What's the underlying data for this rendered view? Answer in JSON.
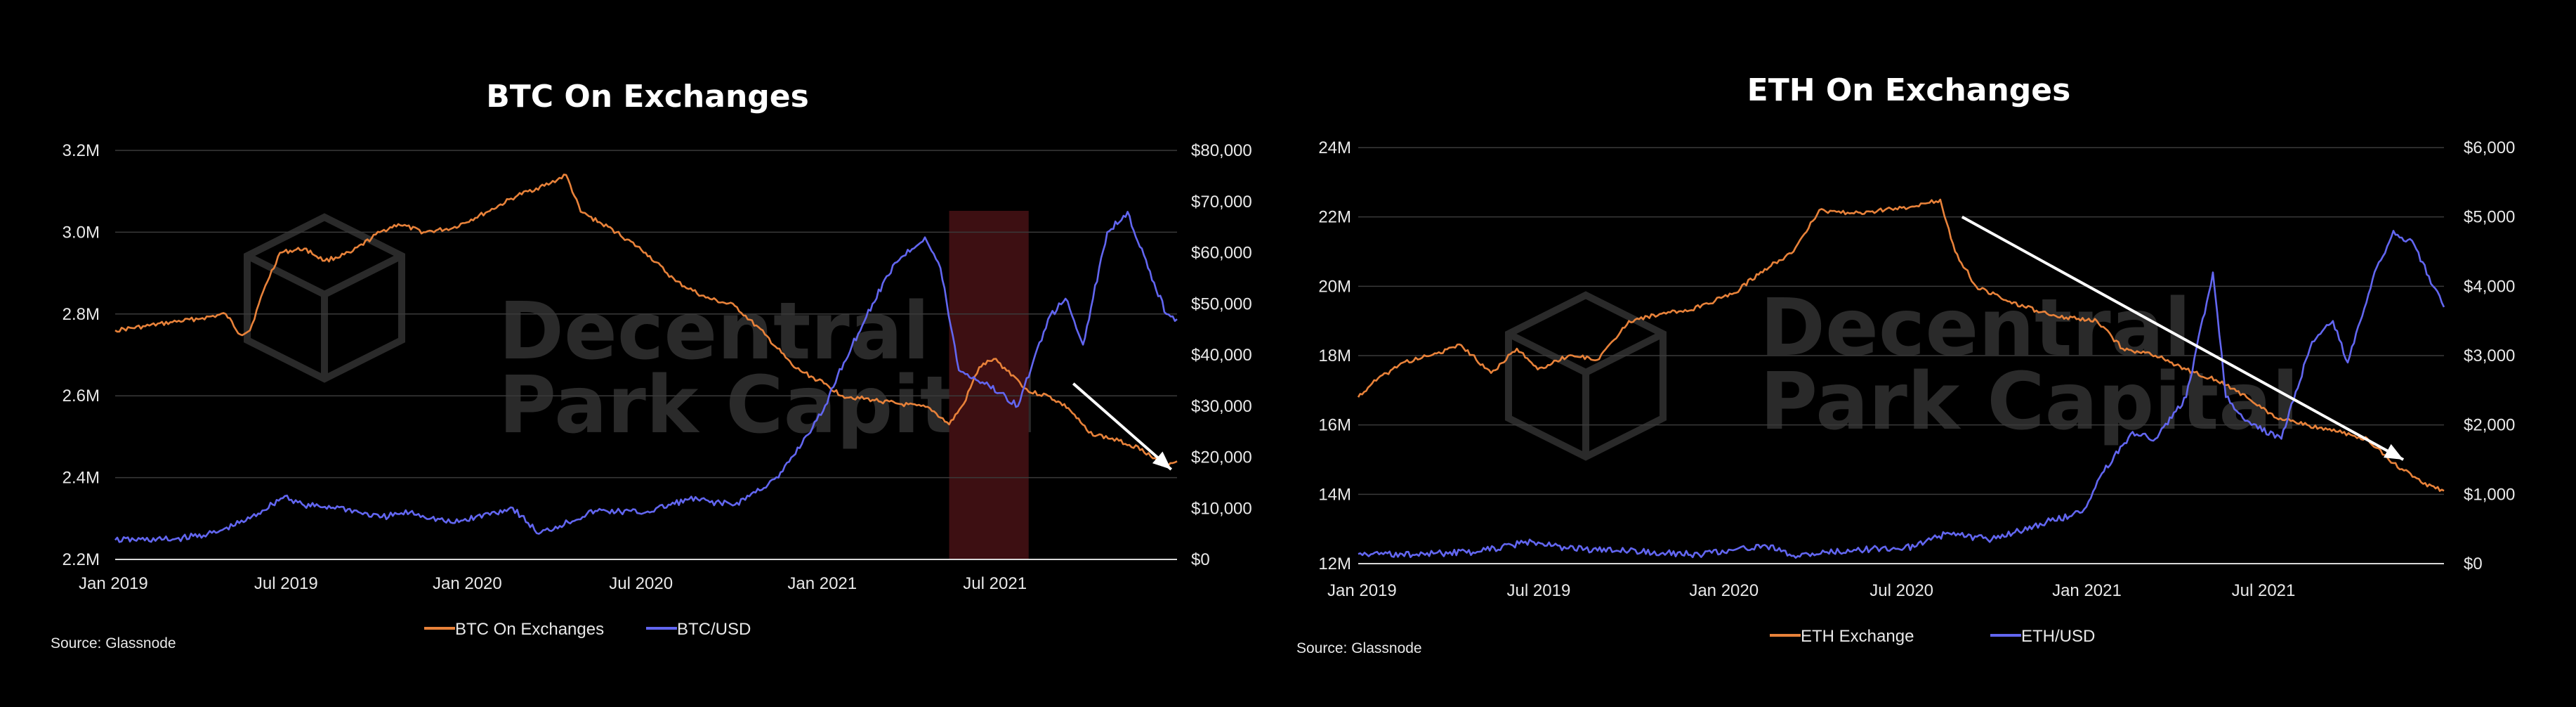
{
  "colors": {
    "orange": "#E8823A",
    "blue": "#6266F0",
    "grid": "#3a3a3a",
    "highlight": "#3d0f12",
    "background": "#000000",
    "arrow": "#ffffff"
  },
  "watermark": {
    "line1": "Decentral",
    "line2": "Park Capital"
  },
  "chart_data": [
    {
      "type": "line",
      "title": "BTC On Exchanges",
      "source": "Source: Glassnode",
      "x_ticks": [
        "Jan 2019",
        "Jul 2019",
        "Jan 2020",
        "Jul 2020",
        "Jan 2021",
        "Jul 2021"
      ],
      "x_range": [
        "2019-01-01",
        "2021-12-31"
      ],
      "y_left": {
        "ticks": [
          "2.2M",
          "2.4M",
          "2.6M",
          "2.8M",
          "3.0M",
          "3.2M"
        ],
        "range": [
          2.2,
          3.2
        ],
        "unit": "M BTC"
      },
      "y_right": {
        "ticks": [
          "$0",
          "$10,000",
          "$20,000",
          "$30,000",
          "$40,000",
          "$50,000",
          "$60,000",
          "$70,000",
          "$80,000"
        ],
        "range": [
          0,
          80000
        ]
      },
      "highlight_region": [
        "2021-05-10",
        "2021-07-31"
      ],
      "arrow": {
        "from": [
          "2021-09-15",
          2.63
        ],
        "to": [
          "2021-12-25",
          2.42
        ],
        "axis": "left"
      },
      "legend": [
        "BTC On Exchanges",
        "BTC/USD"
      ],
      "series": [
        {
          "name": "BTC On Exchanges",
          "axis": "left",
          "color": "orange",
          "points": [
            [
              "2019-01-01",
              2.76
            ],
            [
              "2019-02-01",
              2.77
            ],
            [
              "2019-03-01",
              2.78
            ],
            [
              "2019-04-01",
              2.79
            ],
            [
              "2019-04-25",
              2.8
            ],
            [
              "2019-05-10",
              2.75
            ],
            [
              "2019-05-20",
              2.76
            ],
            [
              "2019-06-05",
              2.87
            ],
            [
              "2019-06-20",
              2.95
            ],
            [
              "2019-07-15",
              2.96
            ],
            [
              "2019-08-05",
              2.93
            ],
            [
              "2019-09-01",
              2.95
            ],
            [
              "2019-10-01",
              3.0
            ],
            [
              "2019-10-20",
              3.02
            ],
            [
              "2019-11-15",
              3.0
            ],
            [
              "2019-12-15",
              3.01
            ],
            [
              "2020-01-20",
              3.05
            ],
            [
              "2020-02-20",
              3.09
            ],
            [
              "2020-03-25",
              3.12
            ],
            [
              "2020-04-10",
              3.14
            ],
            [
              "2020-04-25",
              3.05
            ],
            [
              "2020-06-01",
              3.0
            ],
            [
              "2020-07-01",
              2.95
            ],
            [
              "2020-08-01",
              2.88
            ],
            [
              "2020-09-01",
              2.84
            ],
            [
              "2020-10-01",
              2.82
            ],
            [
              "2020-11-01",
              2.75
            ],
            [
              "2020-12-01",
              2.67
            ],
            [
              "2021-01-01",
              2.63
            ],
            [
              "2021-01-20",
              2.6
            ],
            [
              "2021-02-20",
              2.59
            ],
            [
              "2021-03-20",
              2.58
            ],
            [
              "2021-04-20",
              2.57
            ],
            [
              "2021-05-10",
              2.53
            ],
            [
              "2021-05-25",
              2.58
            ],
            [
              "2021-06-10",
              2.67
            ],
            [
              "2021-06-25",
              2.69
            ],
            [
              "2021-07-15",
              2.65
            ],
            [
              "2021-07-31",
              2.61
            ],
            [
              "2021-08-20",
              2.6
            ],
            [
              "2021-09-10",
              2.57
            ],
            [
              "2021-10-01",
              2.51
            ],
            [
              "2021-11-01",
              2.49
            ],
            [
              "2021-11-25",
              2.47
            ],
            [
              "2021-12-15",
              2.43
            ],
            [
              "2021-12-31",
              2.44
            ]
          ]
        },
        {
          "name": "BTC/USD",
          "axis": "right",
          "color": "blue",
          "points": [
            [
              "2019-01-01",
              3800
            ],
            [
              "2019-03-01",
              3900
            ],
            [
              "2019-04-15",
              5200
            ],
            [
              "2019-05-20",
              8000
            ],
            [
              "2019-06-25",
              12400
            ],
            [
              "2019-07-15",
              10500
            ],
            [
              "2019-08-20",
              10200
            ],
            [
              "2019-10-01",
              8200
            ],
            [
              "2019-11-01",
              9200
            ],
            [
              "2019-12-15",
              7100
            ],
            [
              "2020-02-15",
              10100
            ],
            [
              "2020-03-13",
              5000
            ],
            [
              "2020-05-10",
              9500
            ],
            [
              "2020-07-01",
              9200
            ],
            [
              "2020-08-15",
              11800
            ],
            [
              "2020-10-01",
              10700
            ],
            [
              "2020-11-15",
              16000
            ],
            [
              "2020-12-31",
              29000
            ],
            [
              "2021-01-15",
              36000
            ],
            [
              "2021-02-20",
              50000
            ],
            [
              "2021-03-15",
              58000
            ],
            [
              "2021-04-15",
              63000
            ],
            [
              "2021-05-01",
              57000
            ],
            [
              "2021-05-20",
              37000
            ],
            [
              "2021-06-20",
              34000
            ],
            [
              "2021-07-20",
              30000
            ],
            [
              "2021-08-20",
              47000
            ],
            [
              "2021-09-07",
              51000
            ],
            [
              "2021-09-25",
              42000
            ],
            [
              "2021-10-20",
              64000
            ],
            [
              "2021-11-10",
              68000
            ],
            [
              "2021-12-01",
              57000
            ],
            [
              "2021-12-20",
              48000
            ],
            [
              "2021-12-31",
              47000
            ]
          ]
        }
      ]
    },
    {
      "type": "line",
      "title": "ETH On Exchanges",
      "source": "Source: Glassnode",
      "x_ticks": [
        "Jan 2019",
        "Jul 2019",
        "Jan 2020",
        "Jul 2020",
        "Jan 2021",
        "Jul 2021"
      ],
      "x_range": [
        "2019-01-01",
        "2021-12-31"
      ],
      "y_left": {
        "ticks": [
          "12M",
          "14M",
          "16M",
          "18M",
          "20M",
          "22M",
          "24M"
        ],
        "range": [
          12,
          24
        ],
        "unit": "M ETH"
      },
      "y_right": {
        "ticks": [
          "$0",
          "$1,000",
          "$2,000",
          "$3,000",
          "$4,000",
          "$5,000",
          "$6,000"
        ],
        "range": [
          0,
          6000
        ]
      },
      "arrow": {
        "from": [
          "2020-09-01",
          22.0
        ],
        "to": [
          "2021-11-20",
          15.0
        ],
        "axis": "left"
      },
      "legend": [
        "ETH Exchange",
        "ETH/USD"
      ],
      "series": [
        {
          "name": "ETH Exchange",
          "axis": "left",
          "color": "orange",
          "points": [
            [
              "2019-01-01",
              16.8
            ],
            [
              "2019-01-15",
              17.2
            ],
            [
              "2019-02-15",
              17.8
            ],
            [
              "2019-03-15",
              18.0
            ],
            [
              "2019-04-15",
              18.3
            ],
            [
              "2019-05-15",
              17.5
            ],
            [
              "2019-06-10",
              18.2
            ],
            [
              "2019-07-01",
              17.6
            ],
            [
              "2019-08-01",
              18.0
            ],
            [
              "2019-09-01",
              17.9
            ],
            [
              "2019-10-01",
              19.0
            ],
            [
              "2019-11-01",
              19.2
            ],
            [
              "2019-12-01",
              19.3
            ],
            [
              "2020-01-15",
              19.8
            ],
            [
              "2020-02-15",
              20.5
            ],
            [
              "2020-03-15",
              21.0
            ],
            [
              "2020-04-10",
              22.2
            ],
            [
              "2020-05-15",
              22.1
            ],
            [
              "2020-06-15",
              22.2
            ],
            [
              "2020-07-15",
              22.3
            ],
            [
              "2020-08-10",
              22.5
            ],
            [
              "2020-08-25",
              21.0
            ],
            [
              "2020-09-15",
              20.0
            ],
            [
              "2020-10-15",
              19.6
            ],
            [
              "2020-11-15",
              19.3
            ],
            [
              "2020-12-15",
              19.1
            ],
            [
              "2021-01-15",
              19.0
            ],
            [
              "2021-02-10",
              18.2
            ],
            [
              "2021-03-15",
              18.0
            ],
            [
              "2021-04-15",
              17.6
            ],
            [
              "2021-05-15",
              17.3
            ],
            [
              "2021-06-15",
              16.8
            ],
            [
              "2021-07-15",
              16.2
            ],
            [
              "2021-08-15",
              16.0
            ],
            [
              "2021-09-15",
              15.8
            ],
            [
              "2021-10-15",
              15.6
            ],
            [
              "2021-11-10",
              14.9
            ],
            [
              "2021-12-10",
              14.3
            ],
            [
              "2021-12-31",
              14.1
            ]
          ]
        },
        {
          "name": "ETH/USD",
          "axis": "right",
          "color": "blue",
          "points": [
            [
              "2019-01-01",
              140
            ],
            [
              "2019-03-01",
              135
            ],
            [
              "2019-05-01",
              170
            ],
            [
              "2019-06-25",
              320
            ],
            [
              "2019-08-01",
              220
            ],
            [
              "2019-10-01",
              180
            ],
            [
              "2019-12-15",
              130
            ],
            [
              "2020-02-15",
              270
            ],
            [
              "2020-03-13",
              110
            ],
            [
              "2020-05-15",
              200
            ],
            [
              "2020-07-15",
              240
            ],
            [
              "2020-08-15",
              430
            ],
            [
              "2020-10-01",
              350
            ],
            [
              "2020-11-25",
              600
            ],
            [
              "2020-12-31",
              740
            ],
            [
              "2021-01-20",
              1300
            ],
            [
              "2021-02-20",
              1900
            ],
            [
              "2021-03-15",
              1800
            ],
            [
              "2021-04-15",
              2400
            ],
            [
              "2021-05-12",
              4200
            ],
            [
              "2021-05-25",
              2400
            ],
            [
              "2021-06-20",
              2000
            ],
            [
              "2021-07-20",
              1800
            ],
            [
              "2021-08-20",
              3200
            ],
            [
              "2021-09-10",
              3500
            ],
            [
              "2021-09-25",
              2900
            ],
            [
              "2021-10-20",
              4100
            ],
            [
              "2021-11-10",
              4800
            ],
            [
              "2021-12-01",
              4600
            ],
            [
              "2021-12-20",
              4000
            ],
            [
              "2021-12-31",
              3700
            ]
          ]
        }
      ]
    }
  ]
}
